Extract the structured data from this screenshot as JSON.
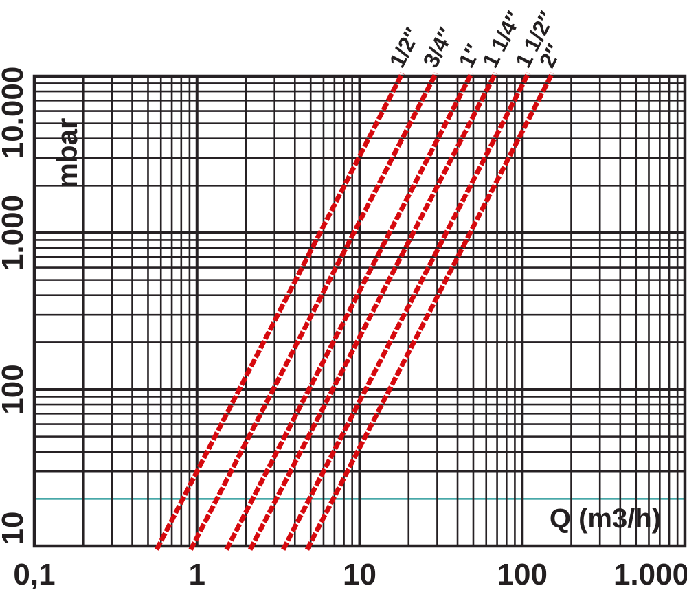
{
  "chart_data": {
    "type": "line",
    "scale": "log-log",
    "title": "",
    "x_axis": {
      "label": "Q (m3/h)",
      "ticks": [
        "0,1",
        "1",
        "10",
        "100",
        "1.000"
      ],
      "tick_values": [
        0.1,
        1,
        10,
        100,
        1000
      ],
      "range": [
        0.1,
        1000
      ],
      "minor_gridlines": true
    },
    "y_axis": {
      "label": "mbar",
      "ticks": [
        "10",
        "100",
        "1.000",
        "10.000"
      ],
      "tick_values": [
        10,
        100,
        1000,
        10000
      ],
      "range": [
        10,
        10000
      ],
      "minor_gridlines": true
    },
    "series": [
      {
        "name": "1/2″",
        "points": [
          [
            0.58,
            10
          ],
          [
            17.9,
            10000
          ]
        ]
      },
      {
        "name": "3/4″",
        "points": [
          [
            0.94,
            10
          ],
          [
            28.8,
            10000
          ]
        ]
      },
      {
        "name": "1″",
        "points": [
          [
            1.56,
            10
          ],
          [
            47.7,
            10000
          ]
        ]
      },
      {
        "name": "1 1/4″",
        "points": [
          [
            2.18,
            10
          ],
          [
            66.9,
            10000
          ]
        ]
      },
      {
        "name": "1 1/2″",
        "points": [
          [
            3.48,
            10
          ],
          [
            106.6,
            10000
          ]
        ]
      },
      {
        "name": "2″",
        "points": [
          [
            4.88,
            10
          ],
          [
            149.6,
            10000
          ]
        ]
      }
    ],
    "reference_line": {
      "axis": "y",
      "value": 20,
      "color": "#2e9c9c"
    },
    "colors": {
      "series": "#d6090e",
      "grid": "#262124",
      "text": "#231f20"
    },
    "legend": "none",
    "grid": "log major + minor, both axes"
  }
}
